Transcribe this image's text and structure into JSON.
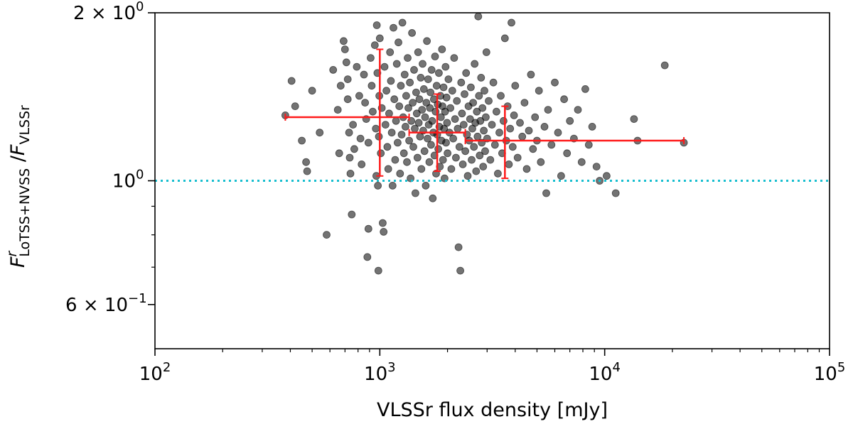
{
  "chart_data": {
    "type": "scatter",
    "title": "",
    "xlabel": "VLSSr flux density [mJy]",
    "ylabel_parts": {
      "main": "F",
      "sup": "r",
      "sub1": "LoTSS+NVSS",
      "slash": " /",
      "main2": "F",
      "sub2": "VLSSr"
    },
    "xscale": "log",
    "yscale": "log",
    "xlim": [
      100,
      100000
    ],
    "ylim": [
      0.5,
      2.0
    ],
    "x_ticks": [
      {
        "value": 100,
        "base": "10",
        "exp": "2"
      },
      {
        "value": 1000,
        "base": "10",
        "exp": "3"
      },
      {
        "value": 10000,
        "base": "10",
        "exp": "4"
      },
      {
        "value": 100000,
        "base": "10",
        "exp": "5"
      }
    ],
    "y_ticks": [
      {
        "value": 2.0,
        "mant": "2 × ",
        "base": "10",
        "exp": "0"
      },
      {
        "value": 1.0,
        "mant": "",
        "base": "10",
        "exp": "0"
      },
      {
        "value": 0.6,
        "mant": "6 × ",
        "base": "10",
        "exp": "−1"
      }
    ],
    "y_minor_ticks": [
      0.7,
      0.8,
      0.9
    ],
    "reference_line": {
      "y": 1.0,
      "color": "#17becf",
      "style": "dotted"
    },
    "point_color": "#000000",
    "points": [
      [
        380,
        1.31
      ],
      [
        405,
        1.51
      ],
      [
        420,
        1.36
      ],
      [
        450,
        1.18
      ],
      [
        470,
        1.08
      ],
      [
        475,
        1.04
      ],
      [
        500,
        1.45
      ],
      [
        540,
        1.22
      ],
      [
        580,
        0.8
      ],
      [
        620,
        1.58
      ],
      [
        650,
        1.34
      ],
      [
        660,
        1.12
      ],
      [
        670,
        1.48
      ],
      [
        690,
        1.78
      ],
      [
        700,
        1.72
      ],
      [
        710,
        1.63
      ],
      [
        720,
        1.52
      ],
      [
        720,
        1.4
      ],
      [
        730,
        1.22
      ],
      [
        735,
        1.1
      ],
      [
        740,
        1.03
      ],
      [
        750,
        0.87
      ],
      [
        760,
        1.26
      ],
      [
        770,
        1.14
      ],
      [
        790,
        1.6
      ],
      [
        810,
        1.42
      ],
      [
        820,
        1.19
      ],
      [
        830,
        1.07
      ],
      [
        850,
        1.55
      ],
      [
        860,
        1.38
      ],
      [
        870,
        1.29
      ],
      [
        880,
        0.73
      ],
      [
        890,
        1.17
      ],
      [
        890,
        0.82
      ],
      [
        910,
        1.66
      ],
      [
        920,
        1.48
      ],
      [
        930,
        1.33
      ],
      [
        950,
        1.75
      ],
      [
        960,
        1.24
      ],
      [
        965,
        1.02
      ],
      [
        970,
        1.9
      ],
      [
        975,
        1.56
      ],
      [
        980,
        0.98
      ],
      [
        985,
        0.69
      ],
      [
        990,
        1.2
      ],
      [
        995,
        1.42
      ],
      [
        1000,
        1.8
      ],
      [
        1010,
        1.12
      ],
      [
        1020,
        1.35
      ],
      [
        1030,
        0.84
      ],
      [
        1040,
        0.81
      ],
      [
        1050,
        1.6
      ],
      [
        1060,
        1.26
      ],
      [
        1070,
        1.45
      ],
      [
        1080,
        1.15
      ],
      [
        1090,
        1.05
      ],
      [
        1100,
        1.32
      ],
      [
        1110,
        1.7
      ],
      [
        1120,
        1.51
      ],
      [
        1130,
        1.22
      ],
      [
        1140,
        0.98
      ],
      [
        1150,
        1.88
      ],
      [
        1160,
        1.4
      ],
      [
        1170,
        1.09
      ],
      [
        1180,
        1.28
      ],
      [
        1190,
        1.62
      ],
      [
        1200,
        1.17
      ],
      [
        1210,
        1.77
      ],
      [
        1220,
        1.36
      ],
      [
        1230,
        1.03
      ],
      [
        1240,
        1.48
      ],
      [
        1250,
        1.21
      ],
      [
        1260,
        1.92
      ],
      [
        1270,
        1.3
      ],
      [
        1280,
        1.12
      ],
      [
        1290,
        1.55
      ],
      [
        1300,
        1.25
      ],
      [
        1310,
        1.42
      ],
      [
        1320,
        1.08
      ],
      [
        1330,
        1.66
      ],
      [
        1340,
        1.35
      ],
      [
        1350,
        1.18
      ],
      [
        1360,
        1.5
      ],
      [
        1370,
        1.01
      ],
      [
        1380,
        1.28
      ],
      [
        1390,
        1.84
      ],
      [
        1400,
        1.38
      ],
      [
        1410,
        1.15
      ],
      [
        1420,
        1.58
      ],
      [
        1430,
        1.24
      ],
      [
        1440,
        0.95
      ],
      [
        1450,
        1.44
      ],
      [
        1460,
        1.32
      ],
      [
        1470,
        1.1
      ],
      [
        1480,
        1.7
      ],
      [
        1490,
        1.27
      ],
      [
        1500,
        1.4
      ],
      [
        1510,
        1.2
      ],
      [
        1520,
        1.53
      ],
      [
        1530,
        1.05
      ],
      [
        1540,
        1.34
      ],
      [
        1550,
        1.62
      ],
      [
        1560,
        1.23
      ],
      [
        1570,
        1.46
      ],
      [
        1580,
        1.13
      ],
      [
        1590,
        1.3
      ],
      [
        1600,
        0.98
      ],
      [
        1610,
        1.38
      ],
      [
        1620,
        1.78
      ],
      [
        1630,
        1.19
      ],
      [
        1640,
        1.52
      ],
      [
        1650,
        1.26
      ],
      [
        1660,
        1.08
      ],
      [
        1670,
        1.35
      ],
      [
        1680,
        1.44
      ],
      [
        1690,
        1.16
      ],
      [
        1700,
        1.58
      ],
      [
        1710,
        1.28
      ],
      [
        1720,
        0.93
      ],
      [
        1730,
        1.22
      ],
      [
        1740,
        1.4
      ],
      [
        1750,
        1.11
      ],
      [
        1760,
        1.67
      ],
      [
        1770,
        1.33
      ],
      [
        1780,
        1.03
      ],
      [
        1790,
        1.48
      ],
      [
        1800,
        1.21
      ],
      [
        1810,
        1.37
      ],
      [
        1820,
        1.14
      ],
      [
        1830,
        1.56
      ],
      [
        1840,
        1.25
      ],
      [
        1850,
        1.06
      ],
      [
        1860,
        1.42
      ],
      [
        1870,
        1.3
      ],
      [
        1880,
        1.18
      ],
      [
        1890,
        1.72
      ],
      [
        1900,
        1.36
      ],
      [
        1910,
        1.09
      ],
      [
        1920,
        1.47
      ],
      [
        1930,
        1.24
      ],
      [
        1940,
        1.01
      ],
      [
        1950,
        1.33
      ],
      [
        1960,
        1.6
      ],
      [
        1970,
        1.17
      ],
      [
        1980,
        1.41
      ],
      [
        1990,
        1.27
      ],
      [
        2000,
        1.12
      ],
      [
        2020,
        1.52
      ],
      [
        2040,
        1.22
      ],
      [
        2060,
        1.35
      ],
      [
        2080,
        1.05
      ],
      [
        2100,
        1.45
      ],
      [
        2120,
        1.19
      ],
      [
        2140,
        1.66
      ],
      [
        2160,
        1.29
      ],
      [
        2180,
        1.1
      ],
      [
        2200,
        1.39
      ],
      [
        2220,
        1.24
      ],
      [
        2240,
        0.76
      ],
      [
        2260,
        1.15
      ],
      [
        2280,
        0.69
      ],
      [
        2300,
        1.5
      ],
      [
        2320,
        1.32
      ],
      [
        2340,
        1.07
      ],
      [
        2360,
        1.26
      ],
      [
        2380,
        1.43
      ],
      [
        2400,
        1.13
      ],
      [
        2420,
        1.56
      ],
      [
        2440,
        1.21
      ],
      [
        2460,
        1.02
      ],
      [
        2480,
        1.36
      ],
      [
        2500,
        1.18
      ],
      [
        2520,
        1.29
      ],
      [
        2540,
        1.47
      ],
      [
        2560,
        1.09
      ],
      [
        2580,
        1.24
      ],
      [
        2600,
        1.38
      ],
      [
        2620,
        1.15
      ],
      [
        2640,
        1.62
      ],
      [
        2660,
        1.27
      ],
      [
        2680,
        1.04
      ],
      [
        2700,
        1.33
      ],
      [
        2720,
        1.2
      ],
      [
        2740,
        1.97
      ],
      [
        2760,
        1.42
      ],
      [
        2780,
        1.11
      ],
      [
        2800,
        1.28
      ],
      [
        2820,
        1.53
      ],
      [
        2840,
        1.17
      ],
      [
        2860,
        1.35
      ],
      [
        2880,
        1.06
      ],
      [
        2900,
        1.23
      ],
      [
        2920,
        1.45
      ],
      [
        2940,
        1.13
      ],
      [
        2960,
        1.3
      ],
      [
        2980,
        1.7
      ],
      [
        3000,
        1.19
      ],
      [
        3050,
        1.39
      ],
      [
        3100,
        1.09
      ],
      [
        3150,
        1.26
      ],
      [
        3200,
        1.5
      ],
      [
        3250,
        1.16
      ],
      [
        3300,
        1.33
      ],
      [
        3350,
        1.03
      ],
      [
        3400,
        1.22
      ],
      [
        3450,
        1.42
      ],
      [
        3500,
        1.12
      ],
      [
        3550,
        1.28
      ],
      [
        3600,
        1.8
      ],
      [
        3650,
        1.18
      ],
      [
        3700,
        1.36
      ],
      [
        3750,
        1.07
      ],
      [
        3800,
        1.24
      ],
      [
        3850,
        1.92
      ],
      [
        3900,
        1.15
      ],
      [
        3950,
        1.31
      ],
      [
        4000,
        1.48
      ],
      [
        4100,
        1.1
      ],
      [
        4200,
        1.27
      ],
      [
        4300,
        1.2
      ],
      [
        4400,
        1.38
      ],
      [
        4500,
        1.05
      ],
      [
        4600,
        1.23
      ],
      [
        4700,
        1.55
      ],
      [
        4800,
        1.14
      ],
      [
        4900,
        1.3
      ],
      [
        5000,
        1.18
      ],
      [
        5100,
        1.45
      ],
      [
        5200,
        1.08
      ],
      [
        5400,
        1.25
      ],
      [
        5500,
        0.95
      ],
      [
        5600,
        1.34
      ],
      [
        5800,
        1.16
      ],
      [
        6000,
        1.5
      ],
      [
        6200,
        1.22
      ],
      [
        6400,
        1.02
      ],
      [
        6600,
        1.4
      ],
      [
        6800,
        1.12
      ],
      [
        7000,
        1.28
      ],
      [
        7300,
        1.19
      ],
      [
        7600,
        1.34
      ],
      [
        7900,
        1.08
      ],
      [
        8200,
        1.46
      ],
      [
        8500,
        1.16
      ],
      [
        8800,
        1.25
      ],
      [
        9200,
        1.06
      ],
      [
        9500,
        1.0
      ],
      [
        10200,
        1.02
      ],
      [
        11200,
        0.95
      ],
      [
        13500,
        1.29
      ],
      [
        14000,
        1.18
      ],
      [
        18500,
        1.61
      ],
      [
        22500,
        1.17
      ]
    ],
    "errorbars": [
      {
        "x": 1000,
        "xerr": [
          380,
          1350
        ],
        "y": 1.3,
        "yerr": [
          1.02,
          1.72
        ]
      },
      {
        "x": 1800,
        "xerr": [
          1350,
          2400
        ],
        "y": 1.22,
        "yerr": [
          1.04,
          1.43
        ]
      },
      {
        "x": 3600,
        "xerr": [
          2400,
          22500
        ],
        "y": 1.18,
        "yerr": [
          1.01,
          1.36
        ]
      }
    ],
    "errorbar_color": "#ff1a1a"
  }
}
